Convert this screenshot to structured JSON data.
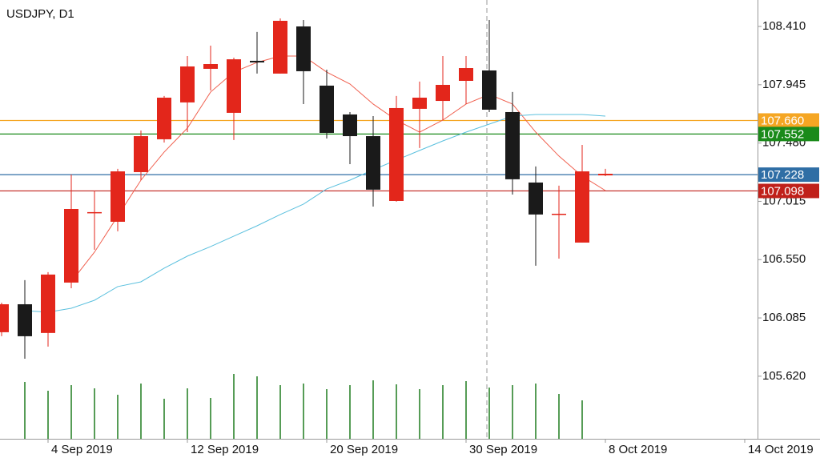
{
  "chart_data": {
    "type": "candlestick",
    "title": "USDJPY, D1",
    "categories": [
      null,
      null,
      "4 Sep 2019",
      null,
      null,
      null,
      null,
      null,
      "12 Sep 2019",
      null,
      null,
      null,
      null,
      null,
      "20 Sep 2019",
      null,
      null,
      null,
      null,
      null,
      "30 Sep 2019",
      null,
      null,
      null,
      null,
      null,
      "8 Oct 2019",
      null,
      null,
      null,
      null,
      null,
      "14 Oct 2019"
    ],
    "open": [
      105.971,
      106.194,
      105.965,
      106.367,
      106.929,
      106.852,
      107.248,
      107.51,
      107.804,
      108.072,
      107.721,
      108.136,
      108.034,
      108.41,
      107.938,
      107.708,
      107.535,
      107.018,
      107.753,
      107.816,
      107.976,
      108.059,
      107.727,
      107.165,
      106.916,
      106.686,
      107.222,
      null,
      null,
      null,
      null,
      null,
      null
    ],
    "high": [
      106.207,
      106.386,
      106.45,
      107.229,
      107.101,
      107.274,
      107.58,
      107.855,
      108.174,
      108.257,
      108.161,
      108.366,
      108.474,
      108.461,
      108.065,
      107.727,
      107.695,
      107.855,
      107.97,
      108.174,
      108.174,
      108.461,
      107.887,
      107.293,
      107.14,
      107.465,
      107.274,
      null,
      null,
      null,
      null,
      null,
      null
    ],
    "low": [
      105.939,
      105.76,
      105.856,
      106.322,
      106.629,
      106.776,
      107.184,
      107.484,
      107.567,
      107.899,
      107.504,
      108.034,
      108.034,
      107.791,
      107.516,
      107.312,
      106.973,
      107.012,
      107.44,
      107.663,
      107.791,
      107.727,
      107.069,
      106.501,
      106.558,
      106.686,
      107.216,
      null,
      null,
      null,
      null,
      null,
      null
    ],
    "close": [
      106.194,
      105.939,
      106.431,
      106.954,
      106.929,
      107.254,
      107.535,
      107.842,
      108.091,
      108.11,
      108.148,
      108.123,
      108.455,
      108.053,
      107.561,
      107.535,
      107.108,
      107.759,
      107.842,
      107.944,
      108.078,
      107.746,
      107.191,
      106.91,
      106.916,
      107.254,
      107.235,
      null,
      null,
      null,
      null,
      null,
      null
    ],
    "up_color": "#e3261b",
    "down_color": "#1a1a1a",
    "volume": [
      null,
      71,
      60,
      67,
      63,
      55,
      69,
      50,
      63,
      51,
      81,
      78,
      67,
      69,
      62,
      67,
      73,
      68,
      62,
      67,
      72,
      64,
      67,
      69,
      56,
      48,
      null,
      null,
      null,
      null,
      null,
      null,
      null
    ],
    "volume_color": "#1e7b1e",
    "moving_averages": [
      {
        "color": "#f0604f",
        "values": [
          null,
          null,
          null,
          106.373,
          106.61,
          106.897,
          107.184,
          107.408,
          107.599,
          107.887,
          108.046,
          108.123,
          108.174,
          108.174,
          108.046,
          107.951,
          107.791,
          107.663,
          107.567,
          107.663,
          107.791,
          107.868,
          107.791,
          107.567,
          107.376,
          107.216,
          107.101,
          null,
          null,
          null,
          null,
          null,
          null
        ]
      },
      {
        "color": "#5bc0de",
        "values": [
          null,
          106.143,
          106.131,
          106.162,
          106.226,
          106.335,
          106.373,
          106.482,
          106.578,
          106.654,
          106.737,
          106.82,
          106.91,
          106.993,
          107.114,
          107.184,
          107.267,
          107.344,
          107.421,
          107.497,
          107.567,
          107.631,
          107.695,
          107.708,
          107.708,
          107.708,
          107.695,
          null,
          null,
          null,
          null,
          null,
          null
        ]
      }
    ],
    "levels": [
      {
        "value": 107.66,
        "label": "107.660",
        "color": "#f5a623"
      },
      {
        "value": 107.552,
        "label": "107.552",
        "color": "#1a8a1a"
      },
      {
        "value": 107.228,
        "label": "107.228",
        "color": "#2f6ea5"
      },
      {
        "value": 107.098,
        "label": "107.098",
        "color": "#c0201a"
      }
    ],
    "ylim": [
      105.121,
      108.621
    ],
    "yticks": [
      {
        "value": 108.41,
        "label": "108.410"
      },
      {
        "value": 107.945,
        "label": "107.945"
      },
      {
        "value": 107.48,
        "label": "107.480"
      },
      {
        "value": 107.015,
        "label": "107.015"
      },
      {
        "value": 106.55,
        "label": "106.550"
      },
      {
        "value": 106.085,
        "label": "106.085"
      },
      {
        "value": 105.62,
        "label": "105.620"
      }
    ]
  }
}
